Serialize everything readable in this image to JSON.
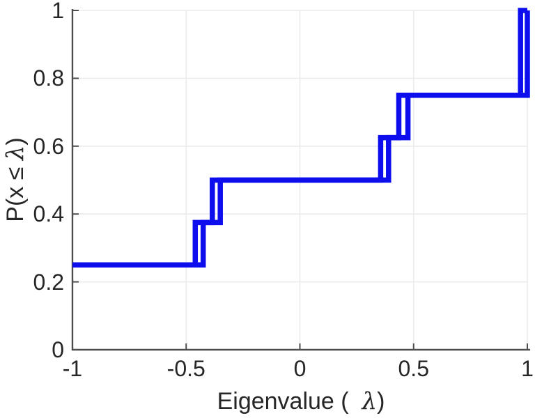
{
  "chart_data": {
    "type": "line",
    "subtype": "empirical-cdf-stairs",
    "title": "",
    "xlabel": "Eigenvalue (  λ)",
    "xlabel_parts": {
      "prefix": "Eigenvalue (  ",
      "symbol": "λ",
      "suffix": ")"
    },
    "ylabel": "P(x ≤ λ)",
    "ylabel_parts": {
      "prefix": "P(x ≤ ",
      "symbol": "λ",
      "suffix": ")"
    },
    "xlim": [
      -1,
      1
    ],
    "ylim": [
      0,
      1
    ],
    "x_ticks": [
      -1,
      -0.5,
      0,
      0.5,
      1
    ],
    "x_tick_labels": [
      "-1",
      "-0.5",
      "0",
      "0.5",
      "1"
    ],
    "y_ticks": [
      0,
      0.2,
      0.4,
      0.6,
      0.8,
      1
    ],
    "y_tick_labels": [
      "0",
      "0.2",
      "0.4",
      "0.6",
      "0.8",
      "1"
    ],
    "grid": true,
    "legend": null,
    "cdf_levels": [
      0.25,
      0.375,
      0.5,
      0.625,
      0.75,
      1.0
    ],
    "series": [
      {
        "name": "step-curve-1",
        "start_level": 0.25,
        "steps": [
          [
            -1.0,
            0.25
          ],
          [
            -0.46,
            0.375
          ],
          [
            -0.385,
            0.5
          ],
          [
            0.355,
            0.625
          ],
          [
            0.435,
            0.75
          ],
          [
            0.97,
            1.0
          ]
        ],
        "end_x": 1.0
      },
      {
        "name": "step-curve-2",
        "start_level": 0.25,
        "steps": [
          [
            -1.0,
            0.25
          ],
          [
            -0.425,
            0.375
          ],
          [
            -0.35,
            0.5
          ],
          [
            0.39,
            0.625
          ],
          [
            0.475,
            0.75
          ],
          [
            1.0,
            1.0
          ]
        ],
        "end_x": 1.0
      }
    ],
    "colors": {
      "line": "#0d0dee",
      "grid": "#ebebeb",
      "axis": "#4d4d4d",
      "text": "#262626",
      "background": "#ffffff"
    }
  }
}
